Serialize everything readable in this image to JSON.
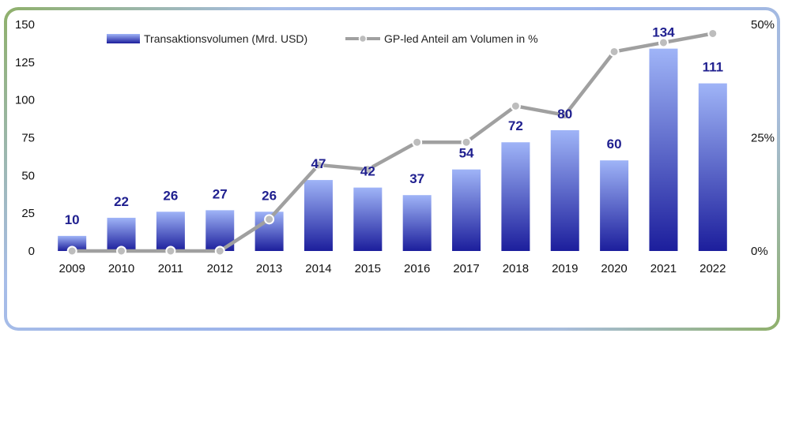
{
  "chart_data": {
    "type": "bar",
    "categories": [
      "2009",
      "2010",
      "2011",
      "2012",
      "2013",
      "2014",
      "2015",
      "2016",
      "2017",
      "2018",
      "2019",
      "2020",
      "2021",
      "2022"
    ],
    "series": [
      {
        "name": "Transaktionsvolumen (Mrd. USD)",
        "type": "bar",
        "axis": "left",
        "values": [
          10,
          22,
          26,
          27,
          26,
          47,
          42,
          37,
          54,
          72,
          80,
          60,
          134,
          111
        ],
        "labels": [
          "10",
          "22",
          "26",
          "27",
          "26",
          "47",
          "42",
          "37",
          "54",
          "72",
          "80",
          "60",
          "134",
          "111"
        ],
        "color_top": "#9fb4f7",
        "color_bottom": "#1c1e9c"
      },
      {
        "name": "GP-led Anteil am Volumen in %",
        "type": "line",
        "axis": "right",
        "values": [
          0,
          0,
          0,
          0,
          7,
          19,
          18,
          24,
          24,
          32,
          30,
          44,
          46,
          48
        ],
        "color": "#a0a0a0",
        "marker_color": "#bdbdbd"
      }
    ],
    "y_left": {
      "ylim": [
        0,
        150
      ],
      "ticks": [
        "0",
        "25",
        "50",
        "75",
        "100",
        "125",
        "150"
      ]
    },
    "y_right": {
      "ylim": [
        0,
        50
      ],
      "ticks": [
        "0%",
        "25%",
        "50%"
      ],
      "values": [
        0,
        25,
        50
      ]
    },
    "legend": {
      "position": "top"
    },
    "grid": false
  }
}
